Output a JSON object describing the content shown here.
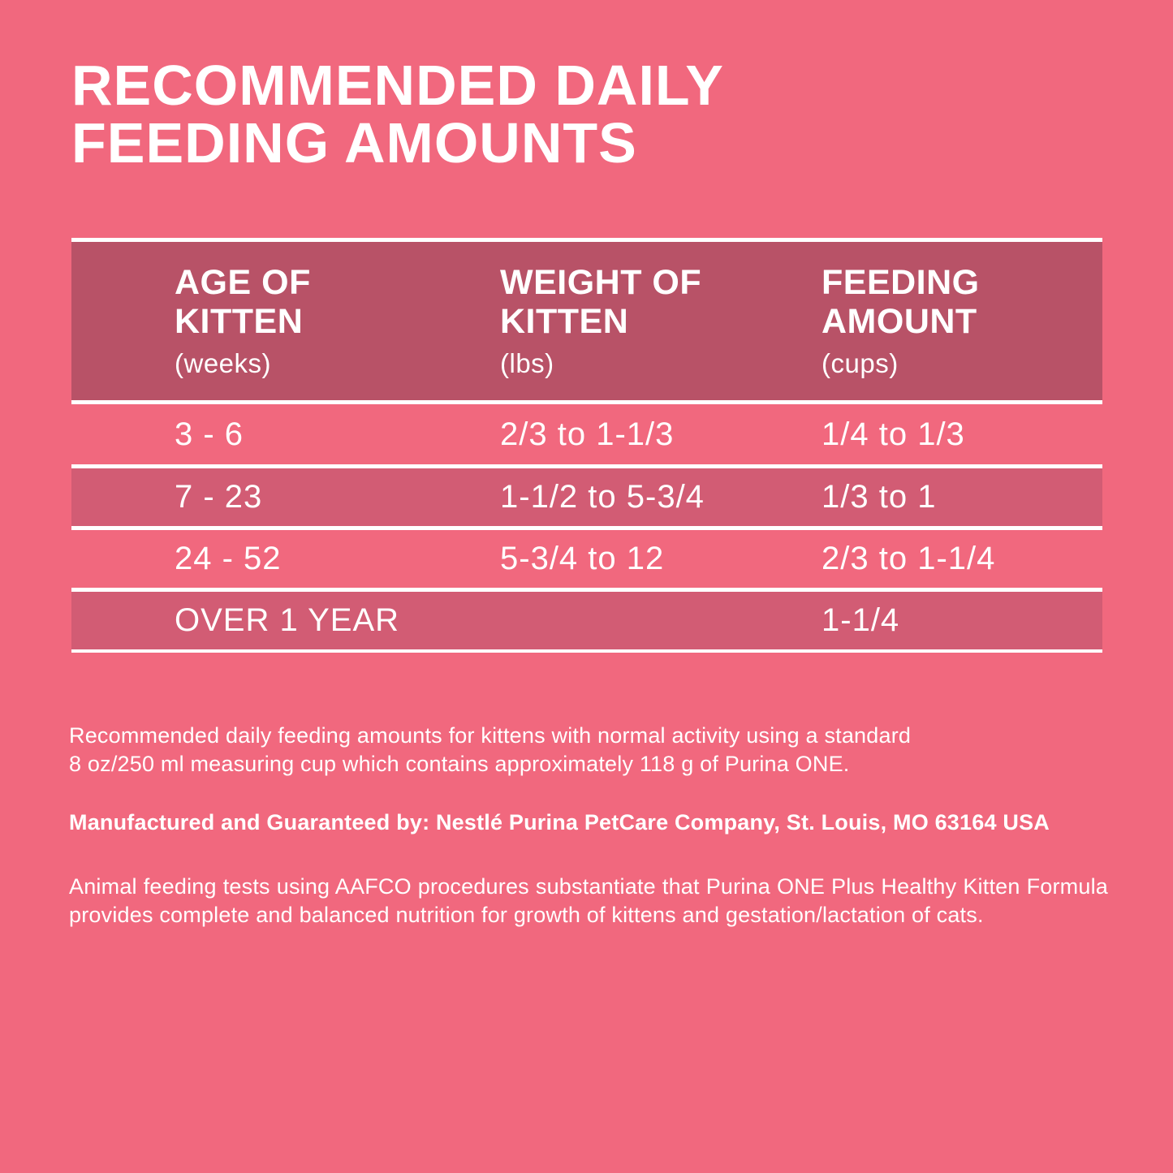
{
  "title": "RECOMMENDED DAILY\nFEEDING AMOUNTS",
  "colors": {
    "background": "#F1687E",
    "header_band": "#B85267",
    "alt_row_band": "#D25C74",
    "light_row_band": "#F1687E",
    "separator": "#FFFFFF",
    "text": "#FFFFFF"
  },
  "table": {
    "columns": [
      {
        "label": "AGE OF\nKITTEN",
        "unit": "(weeks)"
      },
      {
        "label": "WEIGHT OF\nKITTEN",
        "unit": "(lbs)"
      },
      {
        "label": "FEEDING\nAMOUNT",
        "unit": "(cups)"
      }
    ],
    "rows": [
      {
        "age": "3 - 6",
        "weight": "2/3 to 1-1/3",
        "feeding": "1/4 to 1/3"
      },
      {
        "age": "7 - 23",
        "weight": "1-1/2 to 5-3/4",
        "feeding": "1/3 to 1"
      },
      {
        "age": "24 - 52",
        "weight": "5-3/4 to 12",
        "feeding": "2/3 to 1-1/4"
      },
      {
        "age": "OVER 1 YEAR",
        "weight": "",
        "feeding": "1-1/4"
      }
    ]
  },
  "notes": [
    "Recommended daily feeding amounts for kittens with normal activity using a standard\n8 oz/250 ml measuring cup which contains approximately 118 g of Purina ONE.",
    "Manufactured and Guaranteed by: Nestlé Purina PetCare Company, St. Louis, MO 63164 USA",
    "Animal feeding tests using AAFCO procedures substantiate that Purina ONE Plus Healthy Kitten Formula provides complete and balanced nutrition for growth of kittens and gestation/lactation of cats."
  ]
}
